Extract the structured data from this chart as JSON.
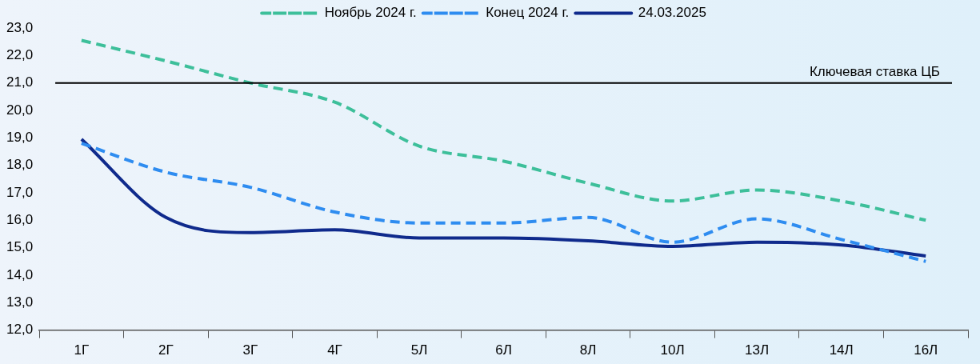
{
  "chart_data": {
    "type": "line",
    "categories": [
      "1Г",
      "2Г",
      "3Г",
      "4Г",
      "5Л",
      "6Л",
      "8Л",
      "10Л",
      "13Л",
      "14Л",
      "16Л"
    ],
    "series": [
      {
        "name": "Ноябрь 2024 г.",
        "color": "#3dbf9a",
        "line_style": "dashed",
        "values": [
          22.55,
          21.8,
          21.0,
          20.3,
          18.7,
          18.15,
          17.35,
          16.7,
          17.1,
          16.7,
          16.0
        ]
      },
      {
        "name": "Конец 2024 г.",
        "color": "#2e8cf0",
        "line_style": "dashed",
        "values": [
          18.8,
          17.75,
          17.2,
          16.3,
          15.9,
          15.9,
          16.1,
          15.2,
          16.05,
          15.3,
          14.5
        ]
      },
      {
        "name": "24.03.2025",
        "color": "#0f2a8c",
        "line_style": "solid",
        "values": [
          18.95,
          16.1,
          15.55,
          15.65,
          15.35,
          15.35,
          15.25,
          15.05,
          15.2,
          15.1,
          14.7
        ]
      }
    ],
    "ylim": [
      12,
      23
    ],
    "yticks": [
      {
        "value": 12,
        "label": "12,0"
      },
      {
        "value": 13,
        "label": "13,0"
      },
      {
        "value": 14,
        "label": "14,0"
      },
      {
        "value": 15,
        "label": "15,0"
      },
      {
        "value": 16,
        "label": "16,0"
      },
      {
        "value": 17,
        "label": "17,0"
      },
      {
        "value": 18,
        "label": "18,0"
      },
      {
        "value": 19,
        "label": "19,0"
      },
      {
        "value": 20,
        "label": "20,0"
      },
      {
        "value": 21,
        "label": "21,0"
      },
      {
        "value": 22,
        "label": "22,0"
      },
      {
        "value": 23,
        "label": "23,0"
      }
    ],
    "ref_lines": [
      {
        "axis": "y",
        "value": 21,
        "label": "Ключевая ставка ЦБ",
        "color": "#000000"
      }
    ],
    "legend": "top",
    "grid": false,
    "marker": "none"
  }
}
